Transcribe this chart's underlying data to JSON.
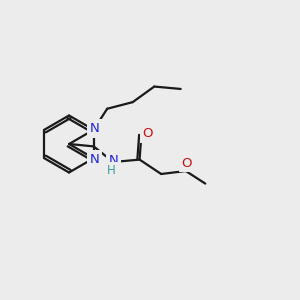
{
  "bg_color": "#ececec",
  "bond_color": "#1a1a1a",
  "N_color": "#2020dd",
  "O_color": "#cc1111",
  "NH_color": "#3d9999",
  "lw": 1.6,
  "fs": 9.0,
  "xlim": [
    0,
    10
  ],
  "ylim": [
    0,
    10
  ]
}
